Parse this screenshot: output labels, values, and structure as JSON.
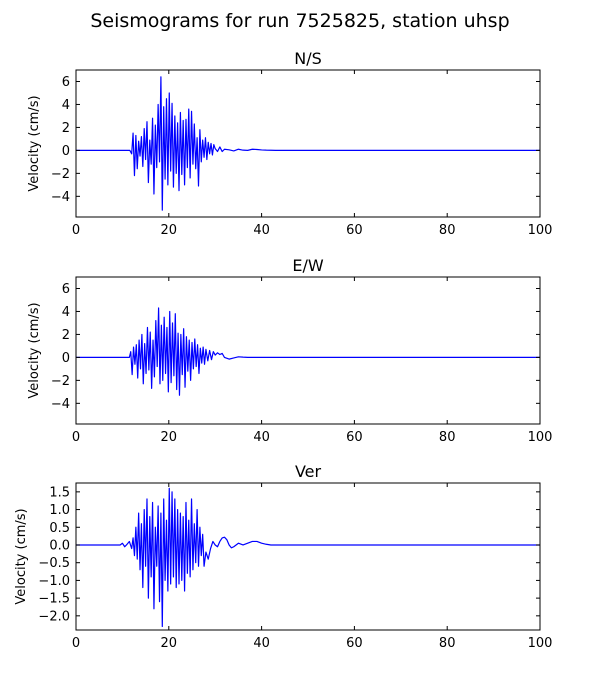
{
  "figure": {
    "title": "Seismograms for run 7525825, station uhsp"
  },
  "chart_data": [
    {
      "type": "line",
      "title": "N/S",
      "xlabel": "",
      "ylabel": "Velocity (cm/s)",
      "xlim": [
        0,
        100
      ],
      "ylim": [
        -5.8,
        7.0
      ],
      "x_ticks": [
        0,
        20,
        40,
        60,
        80,
        100
      ],
      "y_ticks": [
        -4,
        -2,
        0,
        2,
        4,
        6
      ],
      "y_tick_labels": [
        "−4",
        "−2",
        "0",
        "2",
        "4",
        "6"
      ],
      "grid": false,
      "series": [
        {
          "color": "#0000ff",
          "x": [
            0,
            11.6,
            12.0,
            12.3,
            12.6,
            12.9,
            13.2,
            13.5,
            13.8,
            14.1,
            14.4,
            14.7,
            15.0,
            15.3,
            15.6,
            15.9,
            16.2,
            16.5,
            16.8,
            17.1,
            17.4,
            17.7,
            18.0,
            18.3,
            18.6,
            18.9,
            19.2,
            19.5,
            19.8,
            20.1,
            20.4,
            20.7,
            21.0,
            21.3,
            21.6,
            21.9,
            22.2,
            22.5,
            22.8,
            23.1,
            23.4,
            23.7,
            24.0,
            24.3,
            24.6,
            24.9,
            25.2,
            25.5,
            25.8,
            26.1,
            26.4,
            26.7,
            27.0,
            27.3,
            27.6,
            27.9,
            28.2,
            28.5,
            28.8,
            29.1,
            29.4,
            29.7,
            30.0,
            30.5,
            31.0,
            31.5,
            32.0,
            33.0,
            34.0,
            35.0,
            36.0,
            37.0,
            38.0,
            39.0,
            40.0,
            41.0,
            43.0,
            50.0,
            100.0
          ],
          "y": [
            0,
            0,
            -0.3,
            1.5,
            -2.2,
            1.3,
            -1.6,
            0.8,
            -0.5,
            1.2,
            -1.4,
            1.9,
            -0.8,
            2.5,
            -2.8,
            0.9,
            -1.2,
            2.8,
            -3.8,
            2.2,
            -1.5,
            4.0,
            -1.0,
            6.4,
            -5.2,
            3.8,
            -2.5,
            4.5,
            -3.0,
            5.0,
            -1.8,
            4.1,
            -3.2,
            3.0,
            -2.0,
            2.4,
            -3.5,
            3.3,
            -2.1,
            2.6,
            -3.0,
            2.7,
            -1.5,
            3.6,
            -2.4,
            3.4,
            -1.2,
            2.3,
            -1.6,
            1.1,
            -3.1,
            1.8,
            -1.0,
            0.9,
            -0.6,
            1.1,
            -0.8,
            0.7,
            -0.3,
            0.6,
            -0.4,
            0.5,
            0.15,
            -0.1,
            0.3,
            -0.1,
            0.1,
            0.05,
            -0.05,
            0.1,
            0.02,
            0.0,
            0.1,
            0.08,
            0.04,
            0.02,
            0.0,
            0.0,
            0.0
          ]
        }
      ]
    },
    {
      "type": "line",
      "title": "E/W",
      "xlabel": "",
      "ylabel": "Velocity (cm/s)",
      "xlim": [
        0,
        100
      ],
      "ylim": [
        -5.8,
        7.0
      ],
      "x_ticks": [
        0,
        20,
        40,
        60,
        80,
        100
      ],
      "y_ticks": [
        -4,
        -2,
        0,
        2,
        4,
        6
      ],
      "y_tick_labels": [
        "−4",
        "−2",
        "0",
        "2",
        "4",
        "6"
      ],
      "grid": false,
      "series": [
        {
          "color": "#0000ff",
          "x": [
            0,
            11.5,
            11.8,
            12.1,
            12.4,
            12.7,
            13.0,
            13.3,
            13.6,
            13.9,
            14.2,
            14.5,
            14.8,
            15.1,
            15.4,
            15.7,
            16.0,
            16.3,
            16.6,
            16.9,
            17.2,
            17.5,
            17.8,
            18.1,
            18.4,
            18.7,
            19.0,
            19.3,
            19.6,
            19.9,
            20.2,
            20.5,
            20.8,
            21.1,
            21.4,
            21.7,
            22.0,
            22.3,
            22.6,
            22.9,
            23.2,
            23.5,
            23.8,
            24.1,
            24.4,
            24.7,
            25.0,
            25.3,
            25.6,
            25.9,
            26.2,
            26.5,
            26.8,
            27.1,
            27.4,
            27.7,
            28.0,
            28.4,
            28.8,
            29.2,
            29.6,
            30.0,
            30.5,
            31.0,
            31.5,
            32.0,
            33.0,
            34.0,
            35.0,
            36.0,
            37.0,
            38.0,
            39.0,
            40.0,
            41.0,
            43.0,
            50.0,
            100.0
          ],
          "y": [
            0,
            0,
            0.5,
            -1.5,
            0.9,
            -0.6,
            1.1,
            -1.8,
            1.5,
            -1.0,
            2.0,
            -2.3,
            1.2,
            -1.4,
            2.6,
            -1.1,
            2.2,
            -2.7,
            1.5,
            -1.7,
            3.2,
            -0.8,
            4.3,
            -2.3,
            2.8,
            -2.0,
            3.5,
            -1.4,
            2.6,
            -3.0,
            4.0,
            -2.2,
            3.0,
            -1.6,
            3.8,
            -2.8,
            2.1,
            -3.3,
            2.0,
            -1.5,
            2.5,
            -2.6,
            1.8,
            -1.2,
            1.5,
            -2.0,
            1.3,
            -1.0,
            1.6,
            -0.8,
            1.1,
            -1.4,
            0.8,
            -0.5,
            0.9,
            -0.6,
            0.7,
            -0.3,
            0.6,
            -0.2,
            0.5,
            0.2,
            0.4,
            0.25,
            0.35,
            0.0,
            -0.15,
            -0.05,
            0.05,
            0.02,
            0.0,
            0.0,
            0.0,
            0.0,
            0.0,
            0.0,
            0.0,
            0.0
          ]
        }
      ]
    },
    {
      "type": "line",
      "title": "Ver",
      "xlabel": "",
      "ylabel": "Velocity (cm/s)",
      "xlim": [
        0,
        100
      ],
      "ylim": [
        -2.4,
        1.75
      ],
      "x_ticks": [
        0,
        20,
        40,
        60,
        80,
        100
      ],
      "y_ticks": [
        -2.0,
        -1.5,
        -1.0,
        -0.5,
        0.0,
        0.5,
        1.0,
        1.5
      ],
      "y_tick_labels": [
        "−2.0",
        "−1.5",
        "−1.0",
        "−0.5",
        "0.0",
        "0.5",
        "1.0",
        "1.5"
      ],
      "grid": false,
      "series": [
        {
          "color": "#0000ff",
          "x": [
            0,
            9.5,
            10.0,
            10.5,
            11.0,
            11.5,
            12.0,
            12.3,
            12.6,
            12.9,
            13.2,
            13.5,
            13.8,
            14.1,
            14.4,
            14.7,
            15.0,
            15.3,
            15.6,
            15.9,
            16.2,
            16.5,
            16.8,
            17.1,
            17.4,
            17.7,
            18.0,
            18.3,
            18.6,
            18.9,
            19.2,
            19.5,
            19.8,
            20.1,
            20.4,
            20.7,
            21.0,
            21.3,
            21.6,
            21.9,
            22.2,
            22.5,
            22.8,
            23.1,
            23.4,
            23.7,
            24.0,
            24.3,
            24.6,
            24.9,
            25.2,
            25.5,
            25.8,
            26.1,
            26.4,
            26.7,
            27.0,
            27.3,
            27.6,
            28.0,
            28.5,
            29.0,
            29.5,
            30.0,
            30.5,
            31.0,
            31.5,
            32.0,
            32.5,
            33.0,
            33.5,
            34.0,
            35.0,
            36.0,
            37.0,
            38.0,
            39.0,
            40.0,
            41.0,
            42.0,
            44.0,
            50.0,
            100.0
          ],
          "y": [
            0,
            0,
            0.05,
            -0.05,
            0.02,
            0.1,
            -0.1,
            0.2,
            -0.3,
            0.5,
            -0.4,
            0.9,
            -0.7,
            0.6,
            -1.2,
            1.0,
            -0.6,
            1.3,
            -1.5,
            0.8,
            -0.9,
            1.2,
            -1.8,
            0.5,
            -0.6,
            1.1,
            -1.6,
            0.9,
            -2.3,
            1.3,
            -1.0,
            0.7,
            -1.3,
            1.6,
            -1.1,
            1.5,
            -0.9,
            1.3,
            -1.2,
            1.0,
            -1.1,
            0.9,
            -1.0,
            0.8,
            -1.3,
            1.2,
            -0.8,
            0.7,
            -0.9,
            1.3,
            -0.7,
            0.6,
            -0.5,
            1.0,
            -0.6,
            0.5,
            -0.3,
            0.3,
            -0.6,
            -0.2,
            -0.4,
            -0.1,
            0.1,
            0.0,
            -0.05,
            0.1,
            0.2,
            0.22,
            0.15,
            0.0,
            -0.08,
            -0.05,
            0.05,
            0.0,
            0.05,
            0.1,
            0.1,
            0.05,
            0.02,
            0.0,
            0.0,
            0.0,
            0.0
          ]
        }
      ]
    }
  ]
}
